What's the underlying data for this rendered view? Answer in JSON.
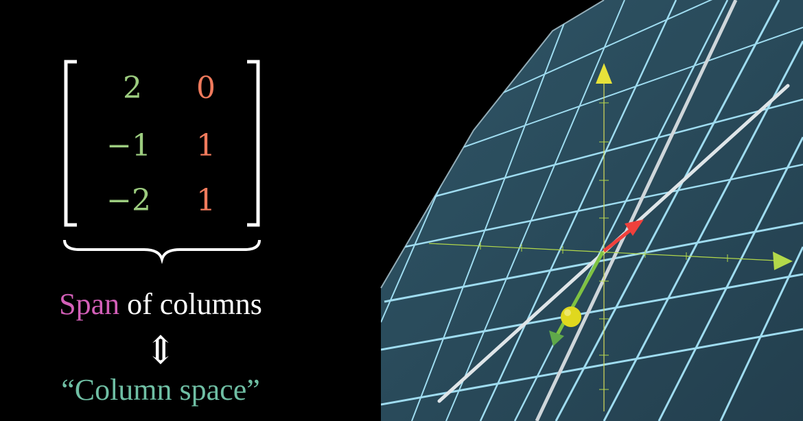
{
  "matrix": {
    "rows": [
      [
        "2",
        "0"
      ],
      [
        "−1",
        "1"
      ],
      [
        "−2",
        "1"
      ]
    ],
    "column_colors": [
      "#9ccc7f",
      "#f07a5c"
    ]
  },
  "caption": {
    "span_word": "Span",
    "rest": " of columns",
    "equivalence_symbol": "⇕",
    "column_space": "“Column space”"
  },
  "colors": {
    "span": "#d35fb8",
    "text": "#ffffff",
    "column_space": "#6fbfa4",
    "plane": "#2b4a5b",
    "grid": "#9fdcf0",
    "z_axis": "#e6e23a",
    "x_axis": "#b3d94a",
    "vector_red": "#f0403c",
    "vector_green": "#7fc242",
    "ball": "#e0d81e"
  },
  "icons": {
    "left_bracket": "bracket-left-icon",
    "right_bracket": "bracket-right-icon",
    "brace": "underbrace-icon",
    "equivalence": "double-arrow-updown-icon"
  }
}
